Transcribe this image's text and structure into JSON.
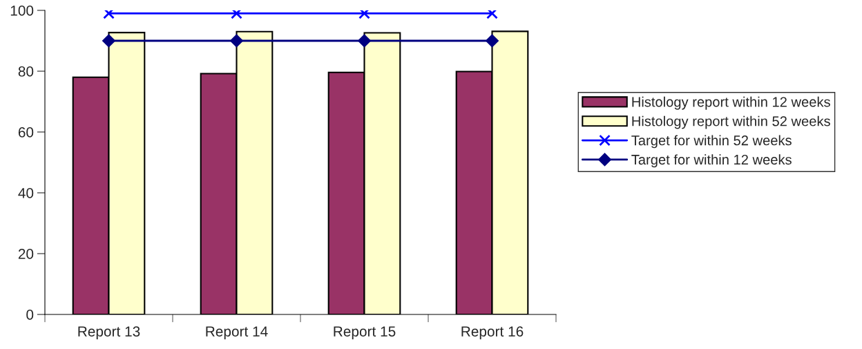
{
  "chart_data": {
    "type": "bar",
    "categories": [
      "Report 13",
      "Report 14",
      "Report 15",
      "Report 16"
    ],
    "series": [
      {
        "name": "Histology report within 12 weeks",
        "color": "#993366",
        "values": [
          78.0,
          79.2,
          79.6,
          79.9
        ]
      },
      {
        "name": "Histology report within 52 weeks",
        "color": "#ffffcc",
        "values": [
          92.7,
          93.0,
          92.6,
          93.1
        ]
      },
      {
        "name": "Target for within 52 weeks",
        "type": "line",
        "marker": "cross",
        "color": "#0000ff",
        "values": [
          99,
          99,
          99,
          99
        ]
      },
      {
        "name": "Target for within 12 weeks",
        "type": "line",
        "marker": "diamond",
        "color": "#000080",
        "values": [
          90,
          90,
          90,
          90
        ]
      }
    ],
    "ylim": [
      0,
      100
    ],
    "yticks": [
      0,
      20,
      40,
      60,
      80,
      100
    ],
    "grid": false,
    "legend": "right"
  }
}
